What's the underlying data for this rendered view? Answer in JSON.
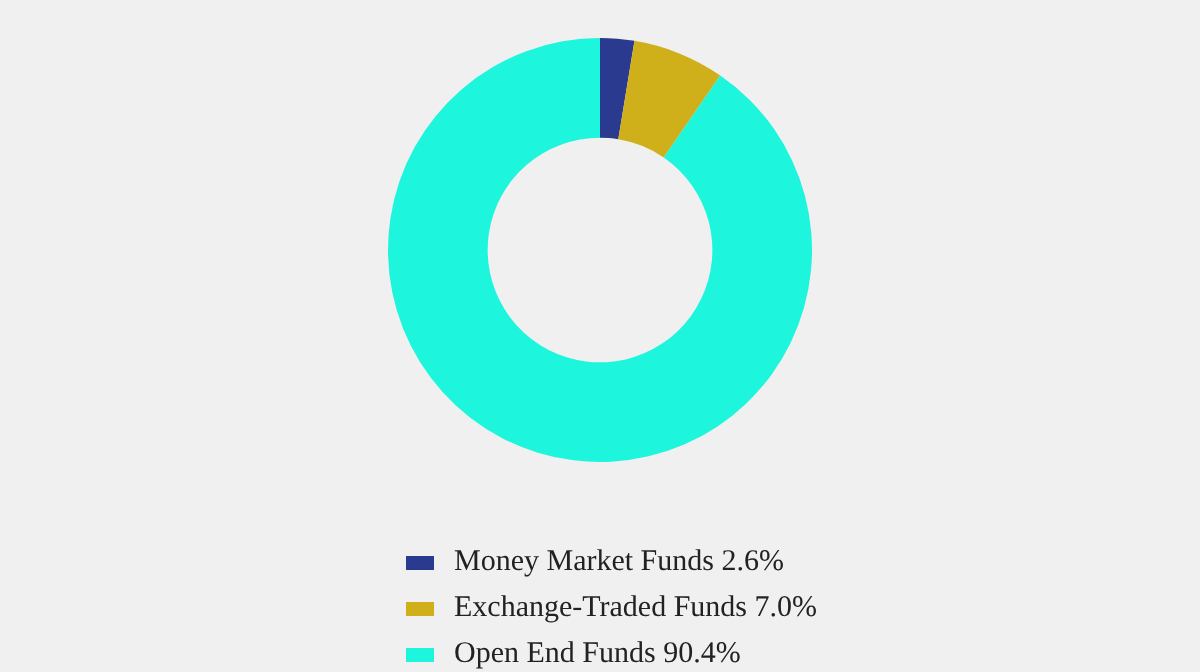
{
  "chart_data": {
    "type": "donut",
    "categories": [
      "Money Market Funds",
      "Exchange-Traded Funds",
      "Open End Funds"
    ],
    "values": [
      2.6,
      7.0,
      90.4
    ],
    "value_labels": [
      "2.6%",
      "7.0%",
      "90.4%"
    ],
    "colors": [
      "#2a3a8f",
      "#cfb01b",
      "#1df5dc"
    ],
    "legend": "bottom"
  }
}
